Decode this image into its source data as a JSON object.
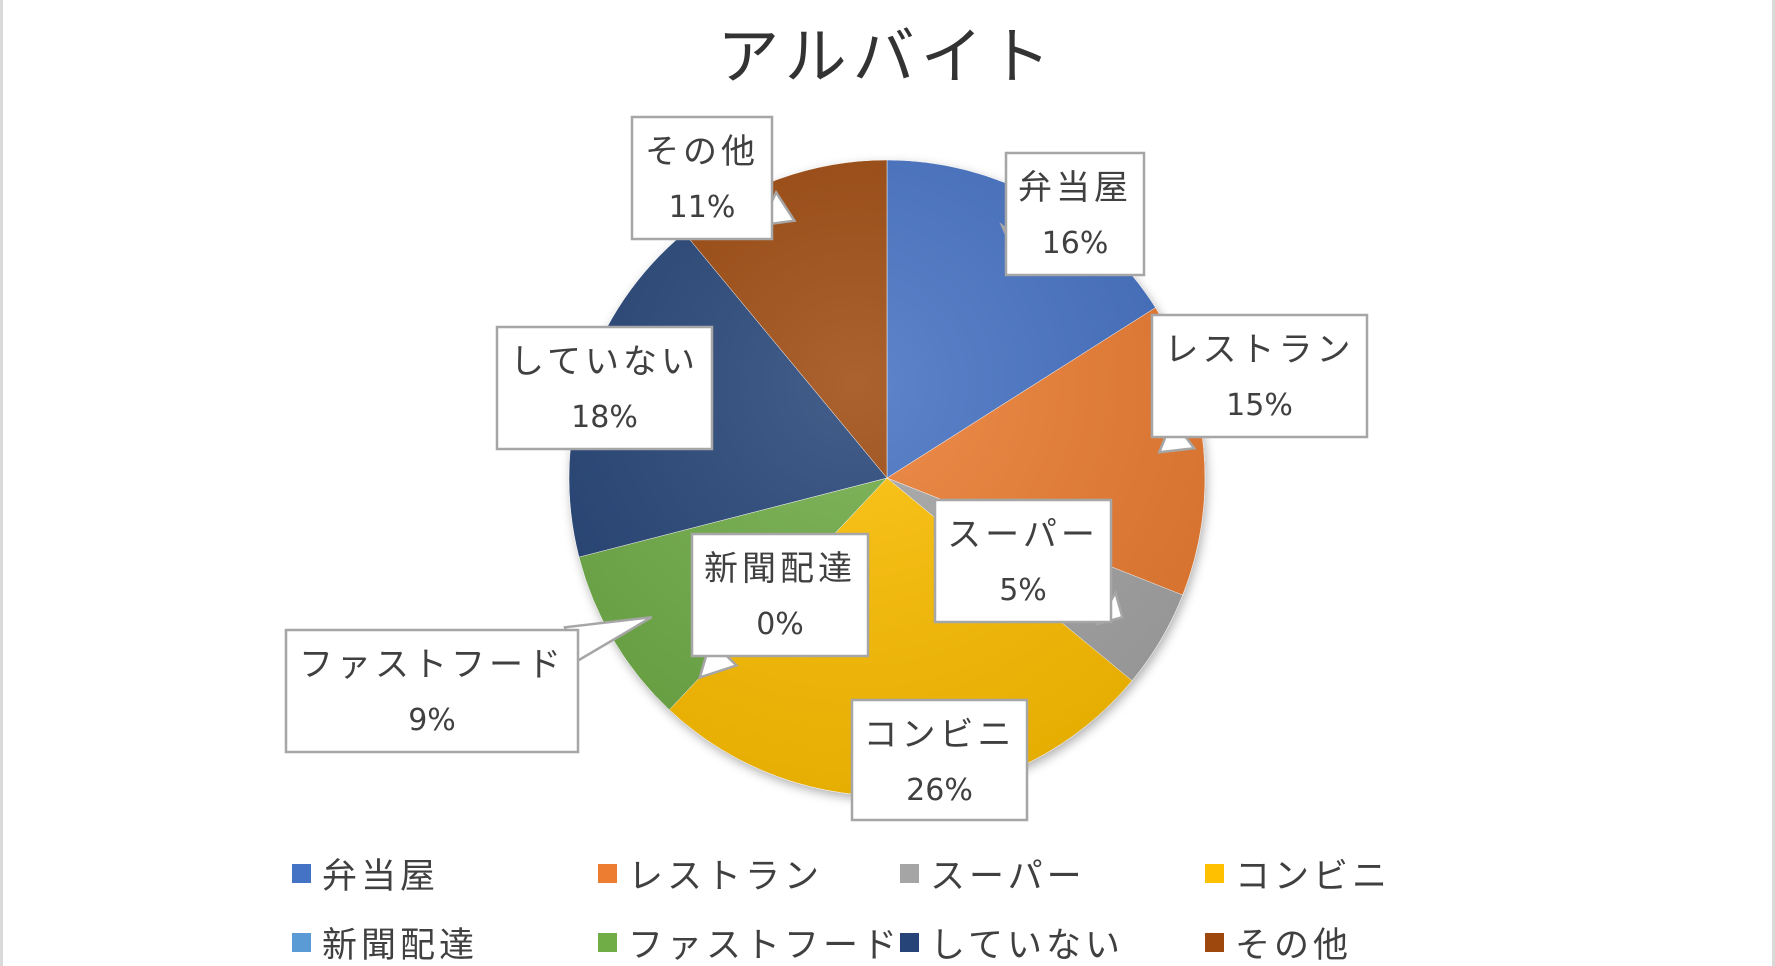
{
  "chart_data": {
    "type": "pie",
    "title": "アルバイト",
    "categories": [
      "弁当屋",
      "レストラン",
      "スーパー",
      "コンビニ",
      "新聞配達",
      "ファストフード",
      "していない",
      "その他"
    ],
    "values": [
      16,
      15,
      5,
      26,
      0,
      9,
      18,
      11
    ],
    "data_labels": [
      "16%",
      "15%",
      "5%",
      "26%",
      "0%",
      "9%",
      "18%",
      "11%"
    ],
    "colors": [
      "#4472C4",
      "#ED7D31",
      "#A5A5A5",
      "#FFC000",
      "#5B9BD5",
      "#70AD47",
      "#264478",
      "#9E480E"
    ],
    "start_angle_deg": 0,
    "direction": "clockwise",
    "legend_position": "bottom",
    "label_style": "callout"
  }
}
